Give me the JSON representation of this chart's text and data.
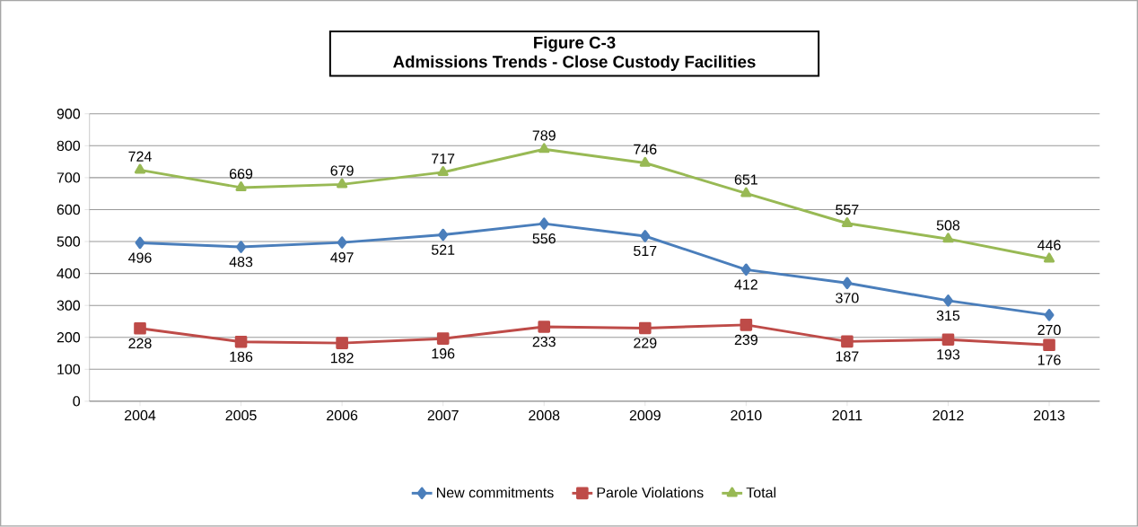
{
  "chart_data": {
    "type": "line",
    "title": "Figure C-3",
    "subtitle": "Admissions Trends - Close Custody Facilities",
    "categories": [
      "2004",
      "2005",
      "2006",
      "2007",
      "2008",
      "2009",
      "2010",
      "2011",
      "2012",
      "2013"
    ],
    "series": [
      {
        "name": "New commitments",
        "color": "#4a7ebb",
        "marker": "diamond",
        "values": [
          496,
          483,
          497,
          521,
          556,
          517,
          412,
          370,
          315,
          270
        ]
      },
      {
        "name": "Parole Violations",
        "color": "#be4b48",
        "marker": "square",
        "values": [
          228,
          186,
          182,
          196,
          233,
          229,
          239,
          187,
          193,
          176
        ]
      },
      {
        "name": "Total",
        "color": "#98b954",
        "marker": "triangle",
        "values": [
          724,
          669,
          679,
          717,
          789,
          746,
          651,
          557,
          508,
          446
        ]
      }
    ],
    "ylim": [
      0,
      900
    ],
    "yticks": [
      0,
      100,
      200,
      300,
      400,
      500,
      600,
      700,
      800,
      900
    ],
    "grid": "y",
    "legend": "bottom",
    "data_labels": true
  }
}
